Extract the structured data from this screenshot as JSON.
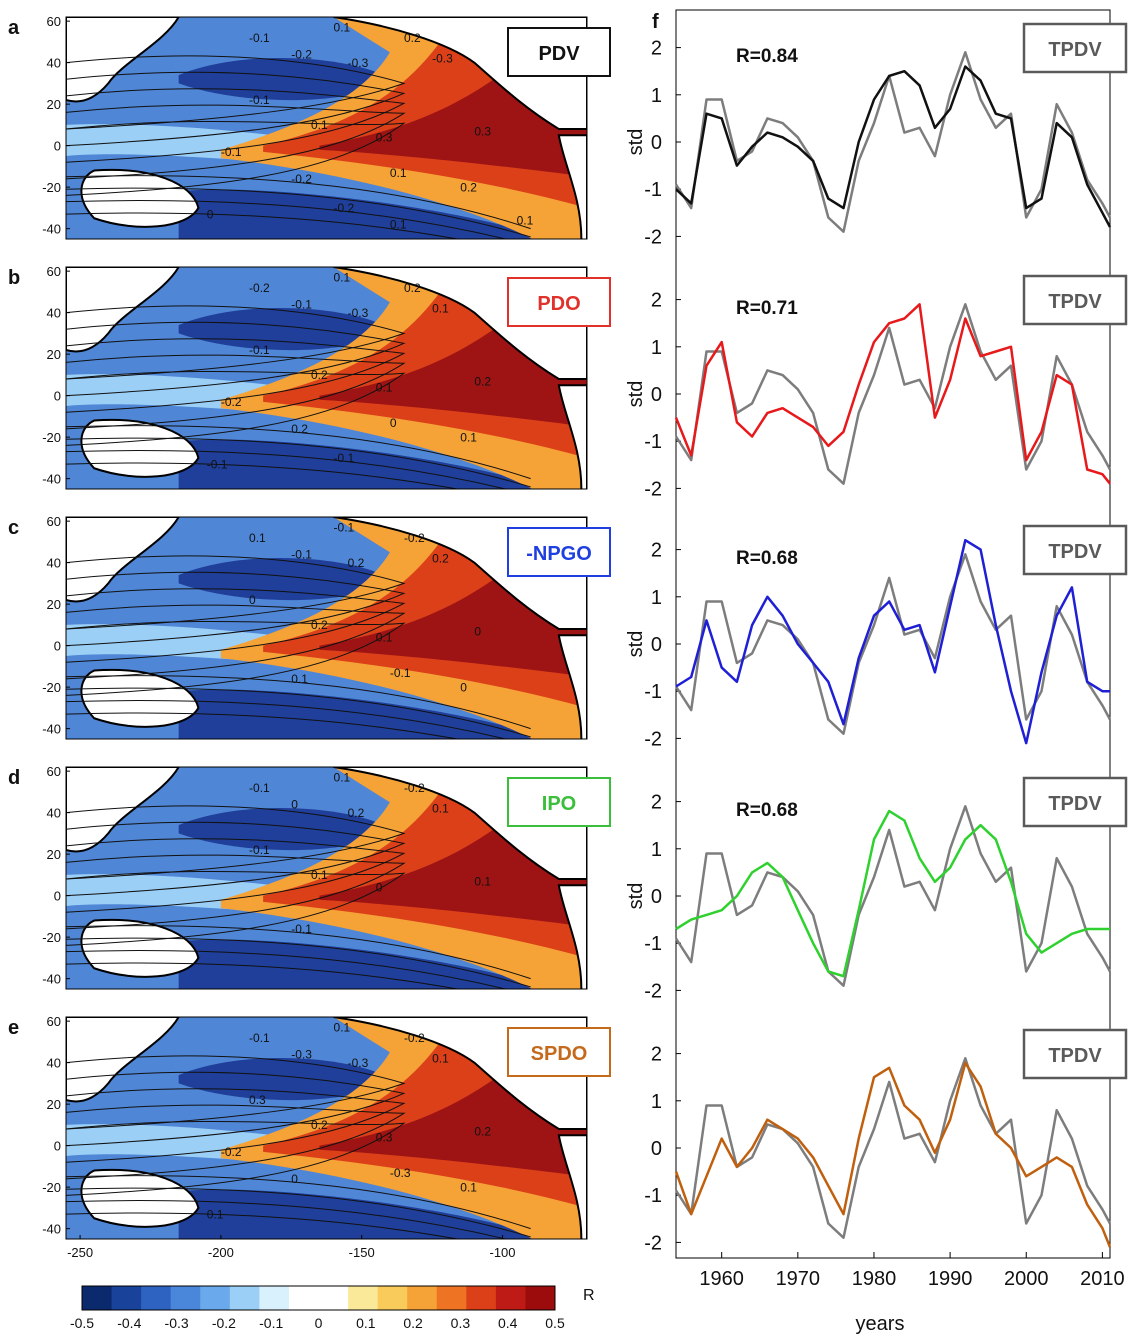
{
  "colors": {
    "black": "#111111",
    "red": "#e8191b",
    "blue": "#1f1fd6",
    "green": "#2fd12f",
    "orange": "#c0600e",
    "gray": "#7d7d7d",
    "ocean_pos_dark": "#9e1414",
    "ocean_neg_dark": "#1f3f9a",
    "land": "#ffffff"
  },
  "colormap": [
    "#0b2a6e",
    "#19439a",
    "#2e63c2",
    "#4a86da",
    "#6aa9ec",
    "#9bcff6",
    "#d8f1fc",
    "#ffffff",
    "#ffffff",
    "#fbe99a",
    "#f9cb5a",
    "#f5a237",
    "#ee7423",
    "#dc4019",
    "#be1b16",
    "#9c0c0c"
  ],
  "map_panels": [
    {
      "letter": "a",
      "label": "PDV",
      "label_color": "#111111",
      "contours": [
        "-0.1",
        "0.1",
        "0.2",
        "-0.2",
        "-0.3",
        "-0.3",
        "-0.1",
        "0.1",
        "0.3",
        "0.3",
        "-0.2",
        "0.1",
        "0.2",
        "-0.1",
        "0",
        "-0.2",
        "0.1",
        "0.1"
      ]
    },
    {
      "letter": "b",
      "label": "PDO",
      "label_color": "#e0322a",
      "contours": [
        "-0.2",
        "0.1",
        "0.2",
        "-0.1",
        "-0.3",
        "0.1",
        "-0.1",
        "0.2",
        "0.1",
        "0.2",
        "0.2",
        "0",
        "0.1",
        "-0.2",
        "-0.1",
        "-0.1"
      ]
    },
    {
      "letter": "c",
      "label": "-NPGO",
      "label_color": "#1f3fe0",
      "contours": [
        "0.1",
        "-0.1",
        "-0.2",
        "-0.1",
        "0.2",
        "0.2",
        "0",
        "0.2",
        "0.1",
        "0",
        "0.1",
        "-0.1",
        "0"
      ]
    },
    {
      "letter": "d",
      "label": "IPO",
      "label_color": "#3bbf3b",
      "contours": [
        "-0.1",
        "0.1",
        "-0.2",
        "0",
        "0.2",
        "0.1",
        "-0.1",
        "0.1",
        "0",
        "0.1",
        "-0.1"
      ]
    },
    {
      "letter": "e",
      "label": "SPDO",
      "label_color": "#c46a1d",
      "contours": [
        "-0.1",
        "0.1",
        "-0.2",
        "-0.3",
        "-0.3",
        "0.1",
        "0.3",
        "0.2",
        "0.3",
        "0.2",
        "0",
        "-0.3",
        "0.1",
        "-0.2",
        "0.1"
      ]
    }
  ],
  "map_axes": {
    "ylim": [
      -45,
      62
    ],
    "xlim": [
      -255,
      -70
    ],
    "yticks": [
      "60",
      "40",
      "20",
      "0",
      "-20",
      "-40"
    ],
    "xticks": [
      "-250",
      "-200",
      "-150",
      "-100"
    ]
  },
  "colorbar": {
    "label": "R",
    "ticks": [
      "-0.5",
      "-0.4",
      "-0.3",
      "-0.2",
      "-0.1",
      "0",
      "0.1",
      "0.2",
      "0.3",
      "0.4",
      "0.5"
    ]
  },
  "panel_f": {
    "letter": "f",
    "xlabel": "years",
    "ylabel": "std",
    "xticks": [
      "1960",
      "1970",
      "1980",
      "1990",
      "2000",
      "2010"
    ],
    "yticks": [
      "2",
      "1",
      "0",
      "-1",
      "-2"
    ],
    "tpdv_label": "TPDV"
  },
  "chart_data": {
    "type": "line",
    "title": "",
    "xlabel": "years",
    "ylabel": "std",
    "xlim": [
      1954,
      2011
    ],
    "ylim": [
      -2.5,
      2.5
    ],
    "x": [
      1954,
      1956,
      1958,
      1960,
      1962,
      1964,
      1966,
      1968,
      1970,
      1972,
      1974,
      1976,
      1978,
      1980,
      1982,
      1984,
      1986,
      1988,
      1990,
      1992,
      1994,
      1996,
      1998,
      2000,
      2002,
      2004,
      2006,
      2008,
      2010,
      2011
    ],
    "reference_series": {
      "name": "TPDV",
      "values": [
        -0.9,
        -1.4,
        0.9,
        0.9,
        -0.4,
        -0.2,
        0.5,
        0.4,
        0.1,
        -0.4,
        -1.6,
        -1.9,
        -0.4,
        0.4,
        1.4,
        0.2,
        0.3,
        -0.3,
        1.0,
        1.9,
        0.9,
        0.3,
        0.6,
        -1.6,
        -1.0,
        0.8,
        0.2,
        -0.8,
        -1.3,
        -1.6
      ]
    },
    "panels": [
      {
        "index": "PDV",
        "R": "R=0.84",
        "values": [
          -1.0,
          -1.3,
          0.6,
          0.5,
          -0.5,
          -0.1,
          0.2,
          0.1,
          -0.1,
          -0.4,
          -1.2,
          -1.4,
          0.0,
          0.9,
          1.4,
          1.5,
          1.2,
          0.3,
          0.7,
          1.6,
          1.3,
          0.6,
          0.5,
          -1.4,
          -1.2,
          0.4,
          0.1,
          -0.9,
          -1.5,
          -1.8
        ]
      },
      {
        "index": "PDO",
        "R": "R=0.71",
        "values": [
          -0.5,
          -1.3,
          0.6,
          1.1,
          -0.6,
          -0.9,
          -0.4,
          -0.3,
          -0.5,
          -0.7,
          -1.1,
          -0.8,
          0.2,
          1.1,
          1.5,
          1.6,
          1.9,
          -0.5,
          0.3,
          1.6,
          0.8,
          0.9,
          1.0,
          -1.4,
          -0.8,
          0.4,
          0.2,
          -1.6,
          -1.7,
          -1.9
        ]
      },
      {
        "index": "-NPGO",
        "R": "R=0.68",
        "values": [
          -0.9,
          -0.7,
          0.5,
          -0.5,
          -0.8,
          0.4,
          1.0,
          0.6,
          0.0,
          -0.4,
          -0.8,
          -1.7,
          -0.3,
          0.6,
          0.9,
          0.3,
          0.4,
          -0.6,
          0.8,
          2.2,
          2.0,
          0.4,
          -1.0,
          -2.1,
          -0.6,
          0.6,
          1.2,
          -0.8,
          -1.0,
          -1.0
        ]
      },
      {
        "index": "IPO",
        "R": "R=0.68",
        "values": [
          -0.7,
          -0.5,
          -0.4,
          -0.3,
          0.0,
          0.5,
          0.7,
          0.4,
          -0.3,
          -1.0,
          -1.6,
          -1.7,
          -0.3,
          1.2,
          1.8,
          1.6,
          0.8,
          0.3,
          0.6,
          1.2,
          1.5,
          1.2,
          0.3,
          -0.8,
          -1.2,
          -1.0,
          -0.8,
          -0.7,
          -0.7,
          -0.7
        ]
      },
      {
        "index": "SPDO",
        "R": "",
        "values": [
          -0.5,
          -1.4,
          -0.6,
          0.2,
          -0.4,
          0.0,
          0.6,
          0.4,
          0.2,
          -0.2,
          -0.8,
          -1.4,
          0.2,
          1.5,
          1.7,
          0.9,
          0.6,
          -0.1,
          0.6,
          1.8,
          1.3,
          0.3,
          0.0,
          -0.6,
          -0.4,
          -0.2,
          -0.4,
          -1.2,
          -1.7,
          -2.1
        ]
      }
    ]
  }
}
